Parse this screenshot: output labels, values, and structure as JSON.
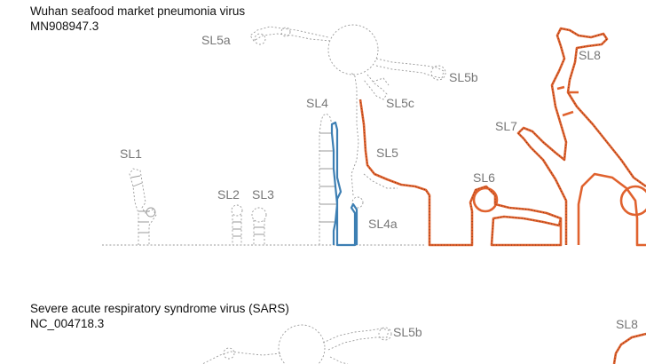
{
  "genomes": [
    {
      "name": "Wuhan seafood market pneumonia virus",
      "accession": "MN908947.3"
    },
    {
      "name": "Severe acute respiratory syndrome virus (SARS)",
      "accession": "NC_004718.3"
    }
  ],
  "structures_top": [
    {
      "id": "sl1",
      "label": "SL1"
    },
    {
      "id": "sl2",
      "label": "SL2"
    },
    {
      "id": "sl3",
      "label": "SL3"
    },
    {
      "id": "sl4",
      "label": "SL4"
    },
    {
      "id": "sl4a",
      "label": "SL4a"
    },
    {
      "id": "sl5",
      "label": "SL5"
    },
    {
      "id": "sl5a",
      "label": "SL5a"
    },
    {
      "id": "sl5b",
      "label": "SL5b"
    },
    {
      "id": "sl5c",
      "label": "SL5c"
    },
    {
      "id": "sl6",
      "label": "SL6"
    },
    {
      "id": "sl7",
      "label": "SL7"
    },
    {
      "id": "sl8",
      "label": "SL8"
    }
  ],
  "structures_bottom": [
    {
      "id": "sl5b",
      "label": "SL5b"
    },
    {
      "id": "sl8",
      "label": "SL8"
    }
  ],
  "colors": {
    "backbone": "#8c8c8c",
    "sl4_highlight": "#3d7fb3",
    "orf_highlight": "#e0622e",
    "label": "#777777"
  }
}
